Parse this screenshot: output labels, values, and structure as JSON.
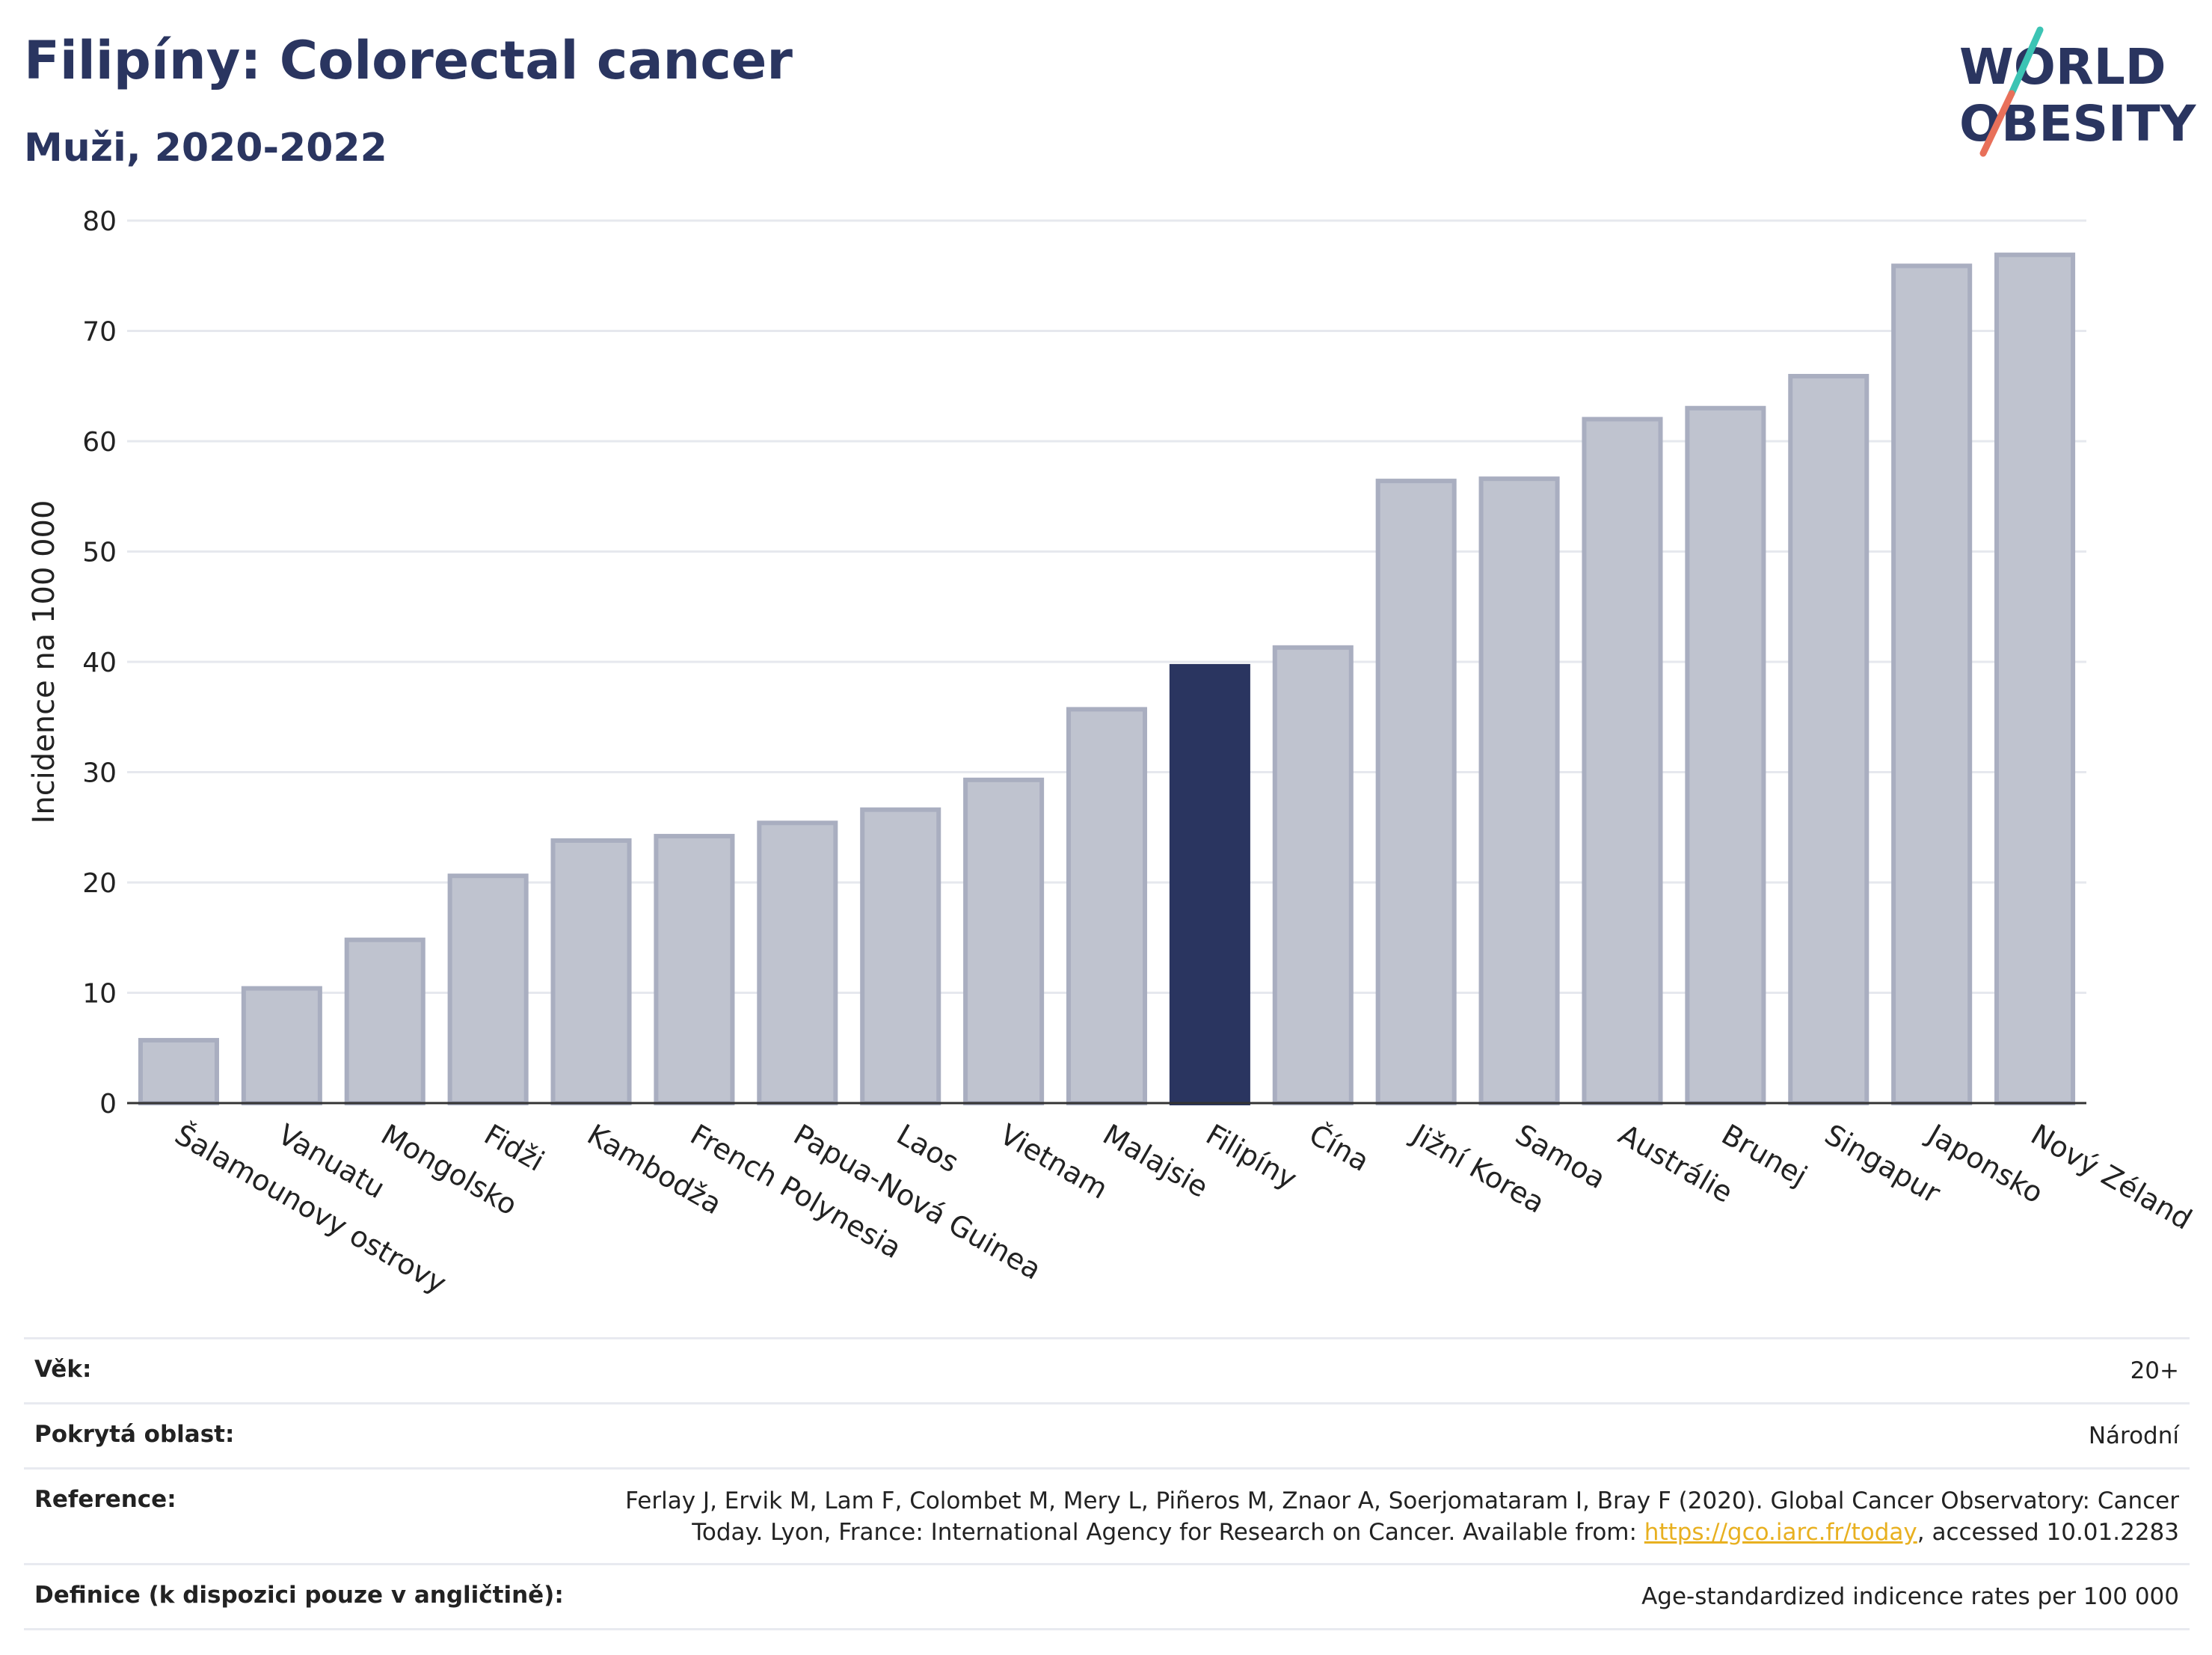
{
  "title": "Filipíny: Colorectal cancer",
  "subtitle": "Muži, 2020-2022",
  "logo": {
    "line1": "WORLD",
    "line2": "OBESITY",
    "colors": {
      "text": "#2a3560",
      "slash_top": "#3cc4b4",
      "slash_bottom": "#e8705a"
    }
  },
  "chart_data": {
    "type": "bar",
    "title": "Filipíny: Colorectal cancer",
    "subtitle": "Muži, 2020-2022",
    "xlabel": "",
    "ylabel": "Incidence na 100 000",
    "ylim": [
      0,
      80
    ],
    "yticks": [
      0,
      10,
      20,
      30,
      40,
      50,
      60,
      70,
      80
    ],
    "grid": true,
    "categories": [
      "Šalamounovy ostrovy",
      "Vanuatu",
      "Mongolsko",
      "Fidži",
      "Kambodža",
      "French Polynesia",
      "Papua-Nová Guinea",
      "Laos",
      "Vietnam",
      "Malajsie",
      "Filipíny",
      "Čína",
      "Jižní Korea",
      "Samoa",
      "Austrálie",
      "Brunej",
      "Singapur",
      "Japonsko",
      "Nový Zéland"
    ],
    "values": [
      5.7,
      10.4,
      14.8,
      20.6,
      23.8,
      24.2,
      25.4,
      26.6,
      29.3,
      35.7,
      39.6,
      41.3,
      56.4,
      56.6,
      62.0,
      63.0,
      65.9,
      75.9,
      76.9
    ],
    "highlight": "Filipíny",
    "colors": {
      "bar": "#bfc3cf",
      "bar_stroke": "#a9aec0",
      "highlight": "#2a3560",
      "grid": "#e6e8ee"
    }
  },
  "info": [
    {
      "label": "Věk:",
      "value": "20+"
    },
    {
      "label": "Pokrytá oblast:",
      "value": "Národní"
    },
    {
      "label": "Reference:",
      "value_pre": "Ferlay J, Ervik M, Lam F, Colombet M, Mery L, Piñeros M, Znaor A, Soerjomataram I, Bray F (2020). Global Cancer Observatory: Cancer Today. Lyon, France: International Agency for Research on Cancer. Available from: ",
      "link": "https://gco.iarc.fr/today",
      "value_post": ", accessed 10.01.2283"
    },
    {
      "label": "Definice (k dispozici pouze v angličtině):",
      "value": "Age-standardized indicence rates per 100 000"
    }
  ]
}
